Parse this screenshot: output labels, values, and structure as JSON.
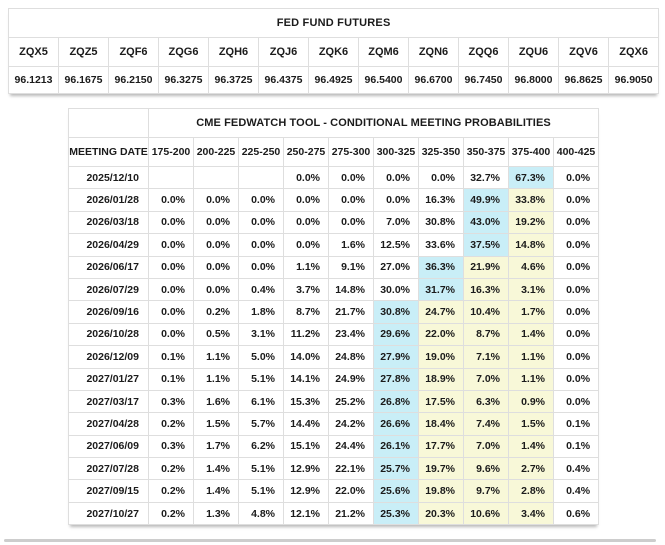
{
  "colors": {
    "max_probability_cell": "#c9eef7",
    "band_highlight_cell": "#f8f8d8",
    "grid_border": "#dedede",
    "table_shadow": "#b9b9b9"
  },
  "chart_data": [
    {
      "type": "table",
      "title": "FED FUND FUTURES",
      "contracts": [
        "ZQX5",
        "ZQZ5",
        "ZQF6",
        "ZQG6",
        "ZQH6",
        "ZQJ6",
        "ZQK6",
        "ZQM6",
        "ZQN6",
        "ZQQ6",
        "ZQU6",
        "ZQV6",
        "ZQX6"
      ],
      "prices": [
        "96.1213",
        "96.1675",
        "96.2150",
        "96.3275",
        "96.3725",
        "96.4375",
        "96.4925",
        "96.5400",
        "96.6700",
        "96.7450",
        "96.8000",
        "96.8625",
        "96.9050"
      ]
    },
    {
      "type": "table",
      "title": "CME FEDWATCH TOOL - CONDITIONAL MEETING PROBABILITIES",
      "columns": [
        "MEETING DATE",
        "175-200",
        "200-225",
        "225-250",
        "250-275",
        "275-300",
        "300-325",
        "325-350",
        "350-375",
        "375-400",
        "400-425"
      ],
      "highlight_legend": {
        "b": "highest probability in row (light blue)",
        "y": "highlighted probability band (light yellow)"
      },
      "rows": [
        {
          "date": "2025/12/10",
          "values": [
            "",
            "",
            "",
            "0.0%",
            "0.0%",
            "0.0%",
            "0.0%",
            "32.7%",
            "67.3%",
            "0.0%"
          ],
          "hl": [
            "",
            "",
            "",
            "",
            "",
            "",
            "",
            "",
            "b",
            ""
          ]
        },
        {
          "date": "2026/01/28",
          "values": [
            "0.0%",
            "0.0%",
            "0.0%",
            "0.0%",
            "0.0%",
            "0.0%",
            "16.3%",
            "49.9%",
            "33.8%",
            "0.0%"
          ],
          "hl": [
            "",
            "",
            "",
            "",
            "",
            "",
            "",
            "b",
            "y",
            ""
          ]
        },
        {
          "date": "2026/03/18",
          "values": [
            "0.0%",
            "0.0%",
            "0.0%",
            "0.0%",
            "0.0%",
            "7.0%",
            "30.8%",
            "43.0%",
            "19.2%",
            "0.0%"
          ],
          "hl": [
            "",
            "",
            "",
            "",
            "",
            "",
            "",
            "b",
            "y",
            ""
          ]
        },
        {
          "date": "2026/04/29",
          "values": [
            "0.0%",
            "0.0%",
            "0.0%",
            "0.0%",
            "1.6%",
            "12.5%",
            "33.6%",
            "37.5%",
            "14.8%",
            "0.0%"
          ],
          "hl": [
            "",
            "",
            "",
            "",
            "",
            "",
            "",
            "b",
            "y",
            ""
          ]
        },
        {
          "date": "2026/06/17",
          "values": [
            "0.0%",
            "0.0%",
            "0.0%",
            "1.1%",
            "9.1%",
            "27.0%",
            "36.3%",
            "21.9%",
            "4.6%",
            "0.0%"
          ],
          "hl": [
            "",
            "",
            "",
            "",
            "",
            "",
            "b",
            "y",
            "y",
            ""
          ]
        },
        {
          "date": "2026/07/29",
          "values": [
            "0.0%",
            "0.0%",
            "0.4%",
            "3.7%",
            "14.8%",
            "30.0%",
            "31.7%",
            "16.3%",
            "3.1%",
            "0.0%"
          ],
          "hl": [
            "",
            "",
            "",
            "",
            "",
            "",
            "b",
            "y",
            "y",
            ""
          ]
        },
        {
          "date": "2026/09/16",
          "values": [
            "0.0%",
            "0.2%",
            "1.8%",
            "8.7%",
            "21.7%",
            "30.8%",
            "24.7%",
            "10.4%",
            "1.7%",
            "0.0%"
          ],
          "hl": [
            "",
            "",
            "",
            "",
            "",
            "b",
            "y",
            "y",
            "y",
            ""
          ]
        },
        {
          "date": "2026/10/28",
          "values": [
            "0.0%",
            "0.5%",
            "3.1%",
            "11.2%",
            "23.4%",
            "29.6%",
            "22.0%",
            "8.7%",
            "1.4%",
            "0.0%"
          ],
          "hl": [
            "",
            "",
            "",
            "",
            "",
            "b",
            "y",
            "y",
            "y",
            ""
          ]
        },
        {
          "date": "2026/12/09",
          "values": [
            "0.1%",
            "1.1%",
            "5.0%",
            "14.0%",
            "24.8%",
            "27.9%",
            "19.0%",
            "7.1%",
            "1.1%",
            "0.0%"
          ],
          "hl": [
            "",
            "",
            "",
            "",
            "",
            "b",
            "y",
            "y",
            "y",
            ""
          ]
        },
        {
          "date": "2027/01/27",
          "values": [
            "0.1%",
            "1.1%",
            "5.1%",
            "14.1%",
            "24.9%",
            "27.8%",
            "18.9%",
            "7.0%",
            "1.1%",
            "0.0%"
          ],
          "hl": [
            "",
            "",
            "",
            "",
            "",
            "b",
            "y",
            "y",
            "y",
            ""
          ]
        },
        {
          "date": "2027/03/17",
          "values": [
            "0.3%",
            "1.6%",
            "6.1%",
            "15.3%",
            "25.2%",
            "26.8%",
            "17.5%",
            "6.3%",
            "0.9%",
            "0.0%"
          ],
          "hl": [
            "",
            "",
            "",
            "",
            "",
            "b",
            "y",
            "y",
            "y",
            ""
          ]
        },
        {
          "date": "2027/04/28",
          "values": [
            "0.2%",
            "1.5%",
            "5.7%",
            "14.4%",
            "24.2%",
            "26.6%",
            "18.4%",
            "7.4%",
            "1.5%",
            "0.1%"
          ],
          "hl": [
            "",
            "",
            "",
            "",
            "",
            "b",
            "y",
            "y",
            "y",
            ""
          ]
        },
        {
          "date": "2027/06/09",
          "values": [
            "0.3%",
            "1.7%",
            "6.2%",
            "15.1%",
            "24.4%",
            "26.1%",
            "17.7%",
            "7.0%",
            "1.4%",
            "0.1%"
          ],
          "hl": [
            "",
            "",
            "",
            "",
            "",
            "b",
            "y",
            "y",
            "y",
            ""
          ]
        },
        {
          "date": "2027/07/28",
          "values": [
            "0.2%",
            "1.4%",
            "5.1%",
            "12.9%",
            "22.1%",
            "25.7%",
            "19.7%",
            "9.6%",
            "2.7%",
            "0.4%"
          ],
          "hl": [
            "",
            "",
            "",
            "",
            "",
            "b",
            "y",
            "y",
            "y",
            ""
          ]
        },
        {
          "date": "2027/09/15",
          "values": [
            "0.2%",
            "1.4%",
            "5.1%",
            "12.9%",
            "22.0%",
            "25.6%",
            "19.8%",
            "9.7%",
            "2.8%",
            "0.4%"
          ],
          "hl": [
            "",
            "",
            "",
            "",
            "",
            "b",
            "y",
            "y",
            "y",
            ""
          ]
        },
        {
          "date": "2027/10/27",
          "values": [
            "0.2%",
            "1.3%",
            "4.8%",
            "12.1%",
            "21.2%",
            "25.3%",
            "20.3%",
            "10.6%",
            "3.4%",
            "0.6%"
          ],
          "hl": [
            "",
            "",
            "",
            "",
            "",
            "b",
            "y",
            "y",
            "y",
            ""
          ]
        }
      ]
    }
  ]
}
